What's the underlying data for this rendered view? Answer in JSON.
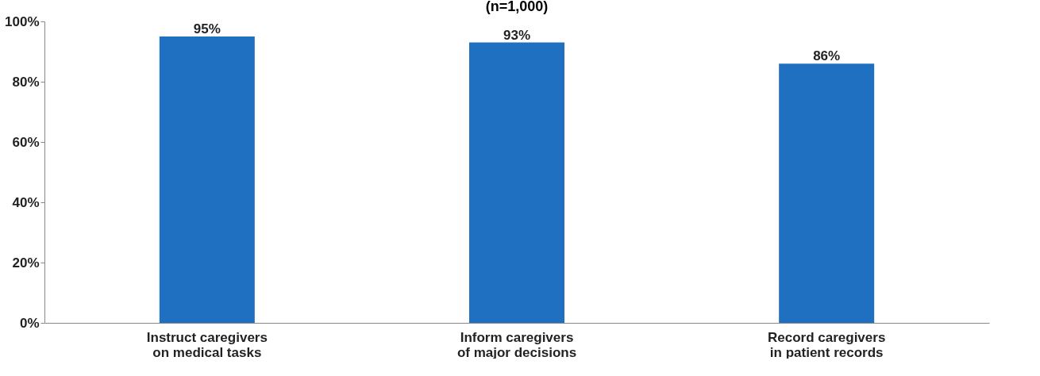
{
  "chart_data": {
    "type": "bar",
    "title": "(n=1,000)",
    "categories": [
      "Instruct caregivers\non medical tasks",
      "Inform caregivers\nof major decisions",
      "Record caregivers\nin patient records"
    ],
    "values": [
      95,
      93,
      86
    ],
    "color": "#1f70c1",
    "ylim": [
      0,
      100
    ],
    "yticks": [
      {
        "value": 0,
        "label": "0%"
      },
      {
        "value": 20,
        "label": "20%"
      },
      {
        "value": 40,
        "label": "40%"
      },
      {
        "value": 60,
        "label": "60%"
      },
      {
        "value": 80,
        "label": "80%"
      },
      {
        "value": 100,
        "label": "100%"
      }
    ],
    "value_labels": [
      "95%",
      "93%",
      "86%"
    ],
    "grid": false
  }
}
